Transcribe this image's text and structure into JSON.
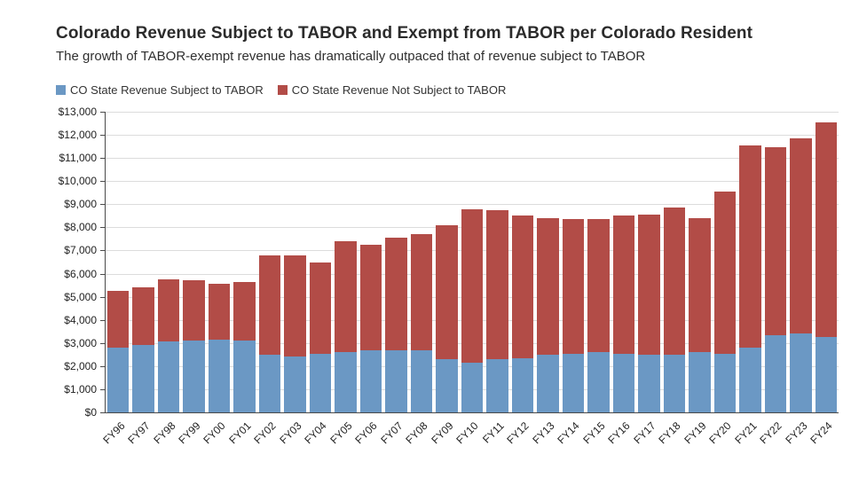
{
  "chart_data": {
    "type": "bar",
    "stacked": true,
    "title": "Colorado Revenue Subject to TABOR and Exempt from TABOR per Colorado Resident",
    "subtitle": "The growth of TABOR-exempt revenue has dramatically outpaced that of revenue subject to TABOR",
    "categories": [
      "FY96",
      "FY97",
      "FY98",
      "FY99",
      "FY00",
      "FY01",
      "FY02",
      "FY03",
      "FY04",
      "FY05",
      "FY06",
      "FY07",
      "FY08",
      "FY09",
      "FY10",
      "FY11",
      "FY12",
      "FY13",
      "FY14",
      "FY15",
      "FY16",
      "FY17",
      "FY18",
      "FY19",
      "FY20",
      "FY21",
      "FY22",
      "FY23",
      "FY24"
    ],
    "series": [
      {
        "name": "CO State Revenue Subject to TABOR",
        "color": "#6b98c4",
        "values": [
          2800,
          2900,
          3050,
          3100,
          3150,
          3100,
          2500,
          2400,
          2550,
          2600,
          2700,
          2700,
          2700,
          2300,
          2150,
          2300,
          2350,
          2500,
          2550,
          2600,
          2550,
          2500,
          2500,
          2600,
          2550,
          2800,
          3350,
          3400,
          3250
        ]
      },
      {
        "name": "CO State Revenue Not Subject to TABOR",
        "color": "#b24c47",
        "values": [
          2450,
          2500,
          2700,
          2600,
          2400,
          2550,
          4300,
          4400,
          3950,
          4800,
          4550,
          4850,
          5000,
          5800,
          6650,
          6450,
          6150,
          5900,
          5800,
          5750,
          5950,
          6050,
          6350,
          5800,
          7000,
          8750,
          8100,
          8450,
          9300
        ]
      }
    ],
    "xlabel": "",
    "ylabel": "",
    "ylim": [
      0,
      13000
    ],
    "y_tick_step": 1000,
    "y_tick_labels": [
      "$0",
      "$1,000",
      "$2,000",
      "$3,000",
      "$4,000",
      "$5,000",
      "$6,000",
      "$7,000",
      "$8,000",
      "$9,000",
      "$10,000",
      "$11,000",
      "$12,000",
      "$13,000"
    ],
    "grid": true,
    "legend_position": "top"
  }
}
